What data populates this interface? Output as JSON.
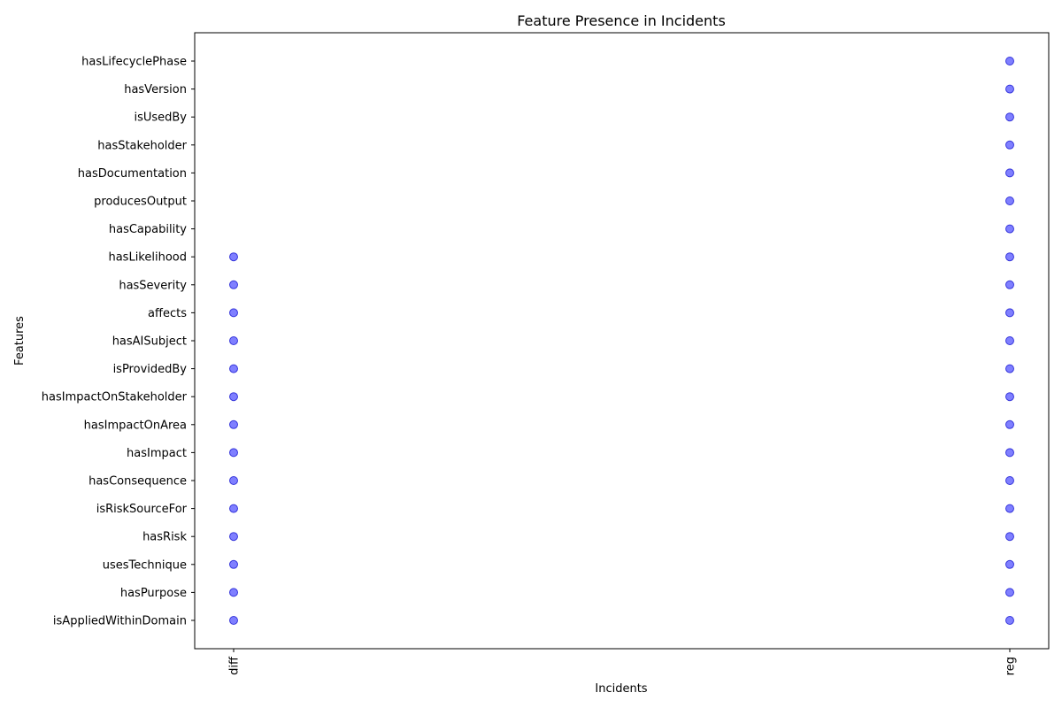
{
  "chart_data": {
    "type": "scatter",
    "title": "Feature Presence in Incidents",
    "xlabel": "Incidents",
    "ylabel": "Features",
    "categories_x": [
      "diff",
      "reg"
    ],
    "categories_y": [
      "isAppliedWithinDomain",
      "hasPurpose",
      "usesTechnique",
      "hasRisk",
      "isRiskSourceFor",
      "hasConsequence",
      "hasImpact",
      "hasImpactOnArea",
      "hasImpactOnStakeholder",
      "isProvidedBy",
      "hasAISubject",
      "affects",
      "hasSeverity",
      "hasLikelihood",
      "hasCapability",
      "producesOutput",
      "hasDocumentation",
      "hasStakeholder",
      "isUsedBy",
      "hasVersion",
      "hasLifecyclePhase"
    ],
    "series": [
      {
        "x": "diff",
        "present": [
          "isAppliedWithinDomain",
          "hasPurpose",
          "usesTechnique",
          "hasRisk",
          "isRiskSourceFor",
          "hasConsequence",
          "hasImpact",
          "hasImpactOnArea",
          "hasImpactOnStakeholder",
          "isProvidedBy",
          "hasAISubject",
          "affects",
          "hasSeverity",
          "hasLikelihood"
        ]
      },
      {
        "x": "reg",
        "present": [
          "isAppliedWithinDomain",
          "hasPurpose",
          "usesTechnique",
          "hasRisk",
          "isRiskSourceFor",
          "hasConsequence",
          "hasImpact",
          "hasImpactOnArea",
          "hasImpactOnStakeholder",
          "isProvidedBy",
          "hasAISubject",
          "affects",
          "hasSeverity",
          "hasLikelihood",
          "hasCapability",
          "producesOutput",
          "hasDocumentation",
          "hasStakeholder",
          "isUsedBy",
          "hasVersion",
          "hasLifecyclePhase"
        ]
      }
    ],
    "colors": {
      "point": "#0000ff"
    },
    "grid": false,
    "legend": "none"
  }
}
